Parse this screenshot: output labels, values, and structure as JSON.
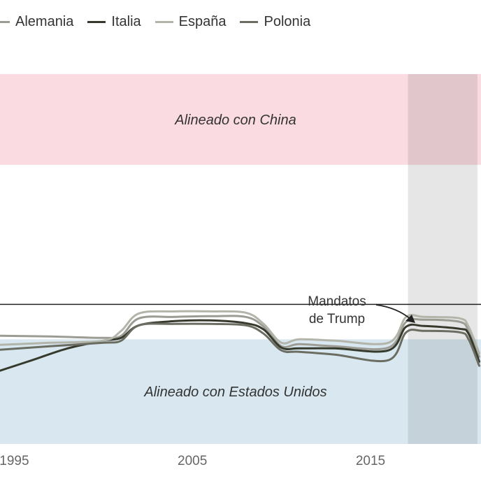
{
  "chart_data": {
    "type": "line",
    "title": "",
    "xlabel": "",
    "ylabel": "",
    "xlim": [
      1994.2,
      2021.2
    ],
    "ylim": [
      -2.0,
      3.4
    ],
    "zones": [
      {
        "name": "Alineado con China",
        "from": 2.0,
        "to": 3.3,
        "color": "#f9dbe1"
      },
      {
        "name": "Alineado con Estados Unidos",
        "from": -2.0,
        "to": -0.5,
        "color": "#d9e8f0"
      }
    ],
    "reference_line": 0,
    "shaded_periods": [
      {
        "label": "Mandatos de Trump",
        "from": 2017.1,
        "to": 2021.0
      }
    ],
    "annotation": {
      "text_lines": [
        "Mandatos",
        "de Trump"
      ]
    },
    "x_ticks": [
      {
        "value": 1995,
        "label": "1995"
      },
      {
        "value": 2005,
        "label": "2005"
      },
      {
        "value": 2015,
        "label": "2015"
      }
    ],
    "legend": {
      "position": "top-left"
    },
    "series": [
      {
        "name": "Alemania",
        "color": "#9c9c94",
        "points": [
          [
            1994.2,
            -0.45
          ],
          [
            1997,
            -0.46
          ],
          [
            2000,
            -0.48
          ],
          [
            2001,
            -0.45
          ],
          [
            2002,
            -0.2
          ],
          [
            2004,
            -0.18
          ],
          [
            2006,
            -0.17
          ],
          [
            2008,
            -0.18
          ],
          [
            2009,
            -0.32
          ],
          [
            2010,
            -0.6
          ],
          [
            2011,
            -0.57
          ],
          [
            2013,
            -0.6
          ],
          [
            2016,
            -0.62
          ],
          [
            2017,
            -0.25
          ],
          [
            2018,
            -0.22
          ],
          [
            2020,
            -0.25
          ],
          [
            2020.5,
            -0.38
          ],
          [
            2021.1,
            -0.75
          ]
        ]
      },
      {
        "name": "Italia",
        "color": "#363a2d",
        "points": [
          [
            1994.2,
            -0.95
          ],
          [
            1996,
            -0.8
          ],
          [
            1998,
            -0.63
          ],
          [
            2000,
            -0.52
          ],
          [
            2001,
            -0.48
          ],
          [
            2002,
            -0.3
          ],
          [
            2004,
            -0.24
          ],
          [
            2006,
            -0.23
          ],
          [
            2008,
            -0.27
          ],
          [
            2009,
            -0.36
          ],
          [
            2010,
            -0.62
          ],
          [
            2011,
            -0.63
          ],
          [
            2013,
            -0.63
          ],
          [
            2016,
            -0.66
          ],
          [
            2017,
            -0.32
          ],
          [
            2018,
            -0.31
          ],
          [
            2020,
            -0.35
          ],
          [
            2020.5,
            -0.42
          ],
          [
            2021.1,
            -0.82
          ]
        ]
      },
      {
        "name": "España",
        "color": "#b3b5aa",
        "points": [
          [
            1994.2,
            -0.58
          ],
          [
            1997,
            -0.55
          ],
          [
            2000,
            -0.52
          ],
          [
            2001,
            -0.38
          ],
          [
            2002,
            -0.13
          ],
          [
            2004,
            -0.1
          ],
          [
            2006,
            -0.1
          ],
          [
            2008,
            -0.12
          ],
          [
            2009,
            -0.28
          ],
          [
            2010,
            -0.55
          ],
          [
            2011,
            -0.5
          ],
          [
            2013,
            -0.52
          ],
          [
            2016,
            -0.55
          ],
          [
            2017,
            -0.18
          ],
          [
            2018,
            -0.18
          ],
          [
            2020,
            -0.2
          ],
          [
            2020.5,
            -0.32
          ],
          [
            2021.1,
            -0.7
          ]
        ]
      },
      {
        "name": "Polonia",
        "color": "#6c6d62",
        "points": [
          [
            1994.2,
            -0.65
          ],
          [
            1997,
            -0.6
          ],
          [
            2000,
            -0.55
          ],
          [
            2001,
            -0.52
          ],
          [
            2002,
            -0.3
          ],
          [
            2004,
            -0.28
          ],
          [
            2006,
            -0.28
          ],
          [
            2008,
            -0.3
          ],
          [
            2009,
            -0.42
          ],
          [
            2010,
            -0.66
          ],
          [
            2011,
            -0.68
          ],
          [
            2013,
            -0.72
          ],
          [
            2016,
            -0.8
          ],
          [
            2017,
            -0.4
          ],
          [
            2018,
            -0.38
          ],
          [
            2020,
            -0.4
          ],
          [
            2020.5,
            -0.5
          ],
          [
            2021.1,
            -0.88
          ]
        ]
      }
    ]
  }
}
